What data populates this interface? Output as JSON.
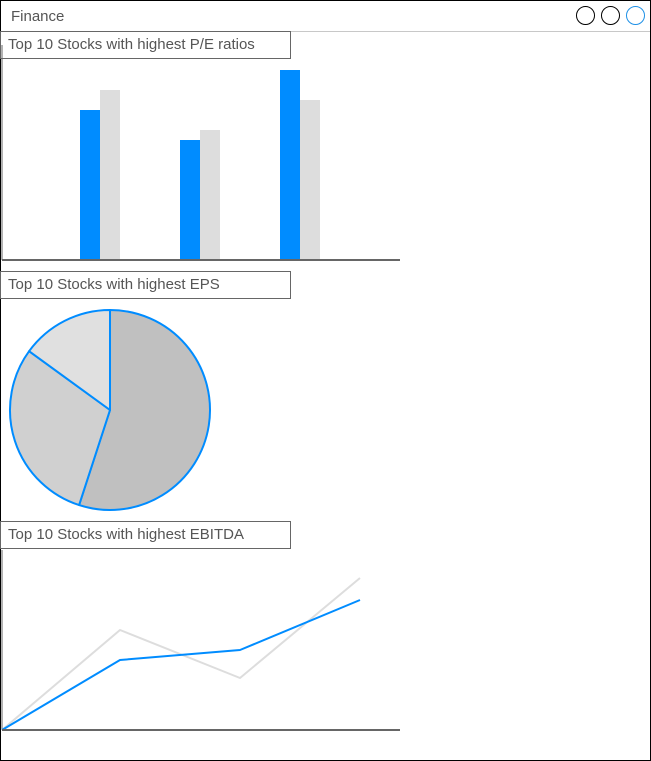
{
  "window": {
    "title": "Finance"
  },
  "sections": [
    {
      "title": "Top 10 Stocks with highest P/E ratios"
    },
    {
      "title": "Top 10 Stocks with highest EPS"
    },
    {
      "title": "Top 10 Stocks with highest EBITDA"
    }
  ],
  "colors": {
    "accent": "#008cff",
    "secondary": "#dddddd",
    "pie_fill_1": "#c0c0c0",
    "pie_fill_2": "#d0d0d0",
    "pie_fill_3": "#e0e0e0",
    "axis": "#666666"
  },
  "chart_data": [
    {
      "type": "bar",
      "title": "Top 10 Stocks with highest P/E ratios",
      "categories": [
        "",
        "",
        ""
      ],
      "series": [
        {
          "values": [
            150,
            120,
            190
          ]
        },
        {
          "values": [
            170,
            130,
            160
          ]
        }
      ],
      "ylim": [
        0,
        200
      ]
    },
    {
      "type": "pie",
      "title": "Top 10 Stocks with highest EPS",
      "values": [
        55,
        30,
        15
      ]
    },
    {
      "type": "line",
      "title": "Top 10 Stocks with highest EBITDA",
      "x": [
        0,
        1,
        2,
        3
      ],
      "series": [
        {
          "values": [
            0,
            70,
            80,
            130
          ]
        },
        {
          "values": [
            0,
            100,
            52,
            152
          ]
        }
      ],
      "ylim": [
        0,
        160
      ]
    }
  ]
}
